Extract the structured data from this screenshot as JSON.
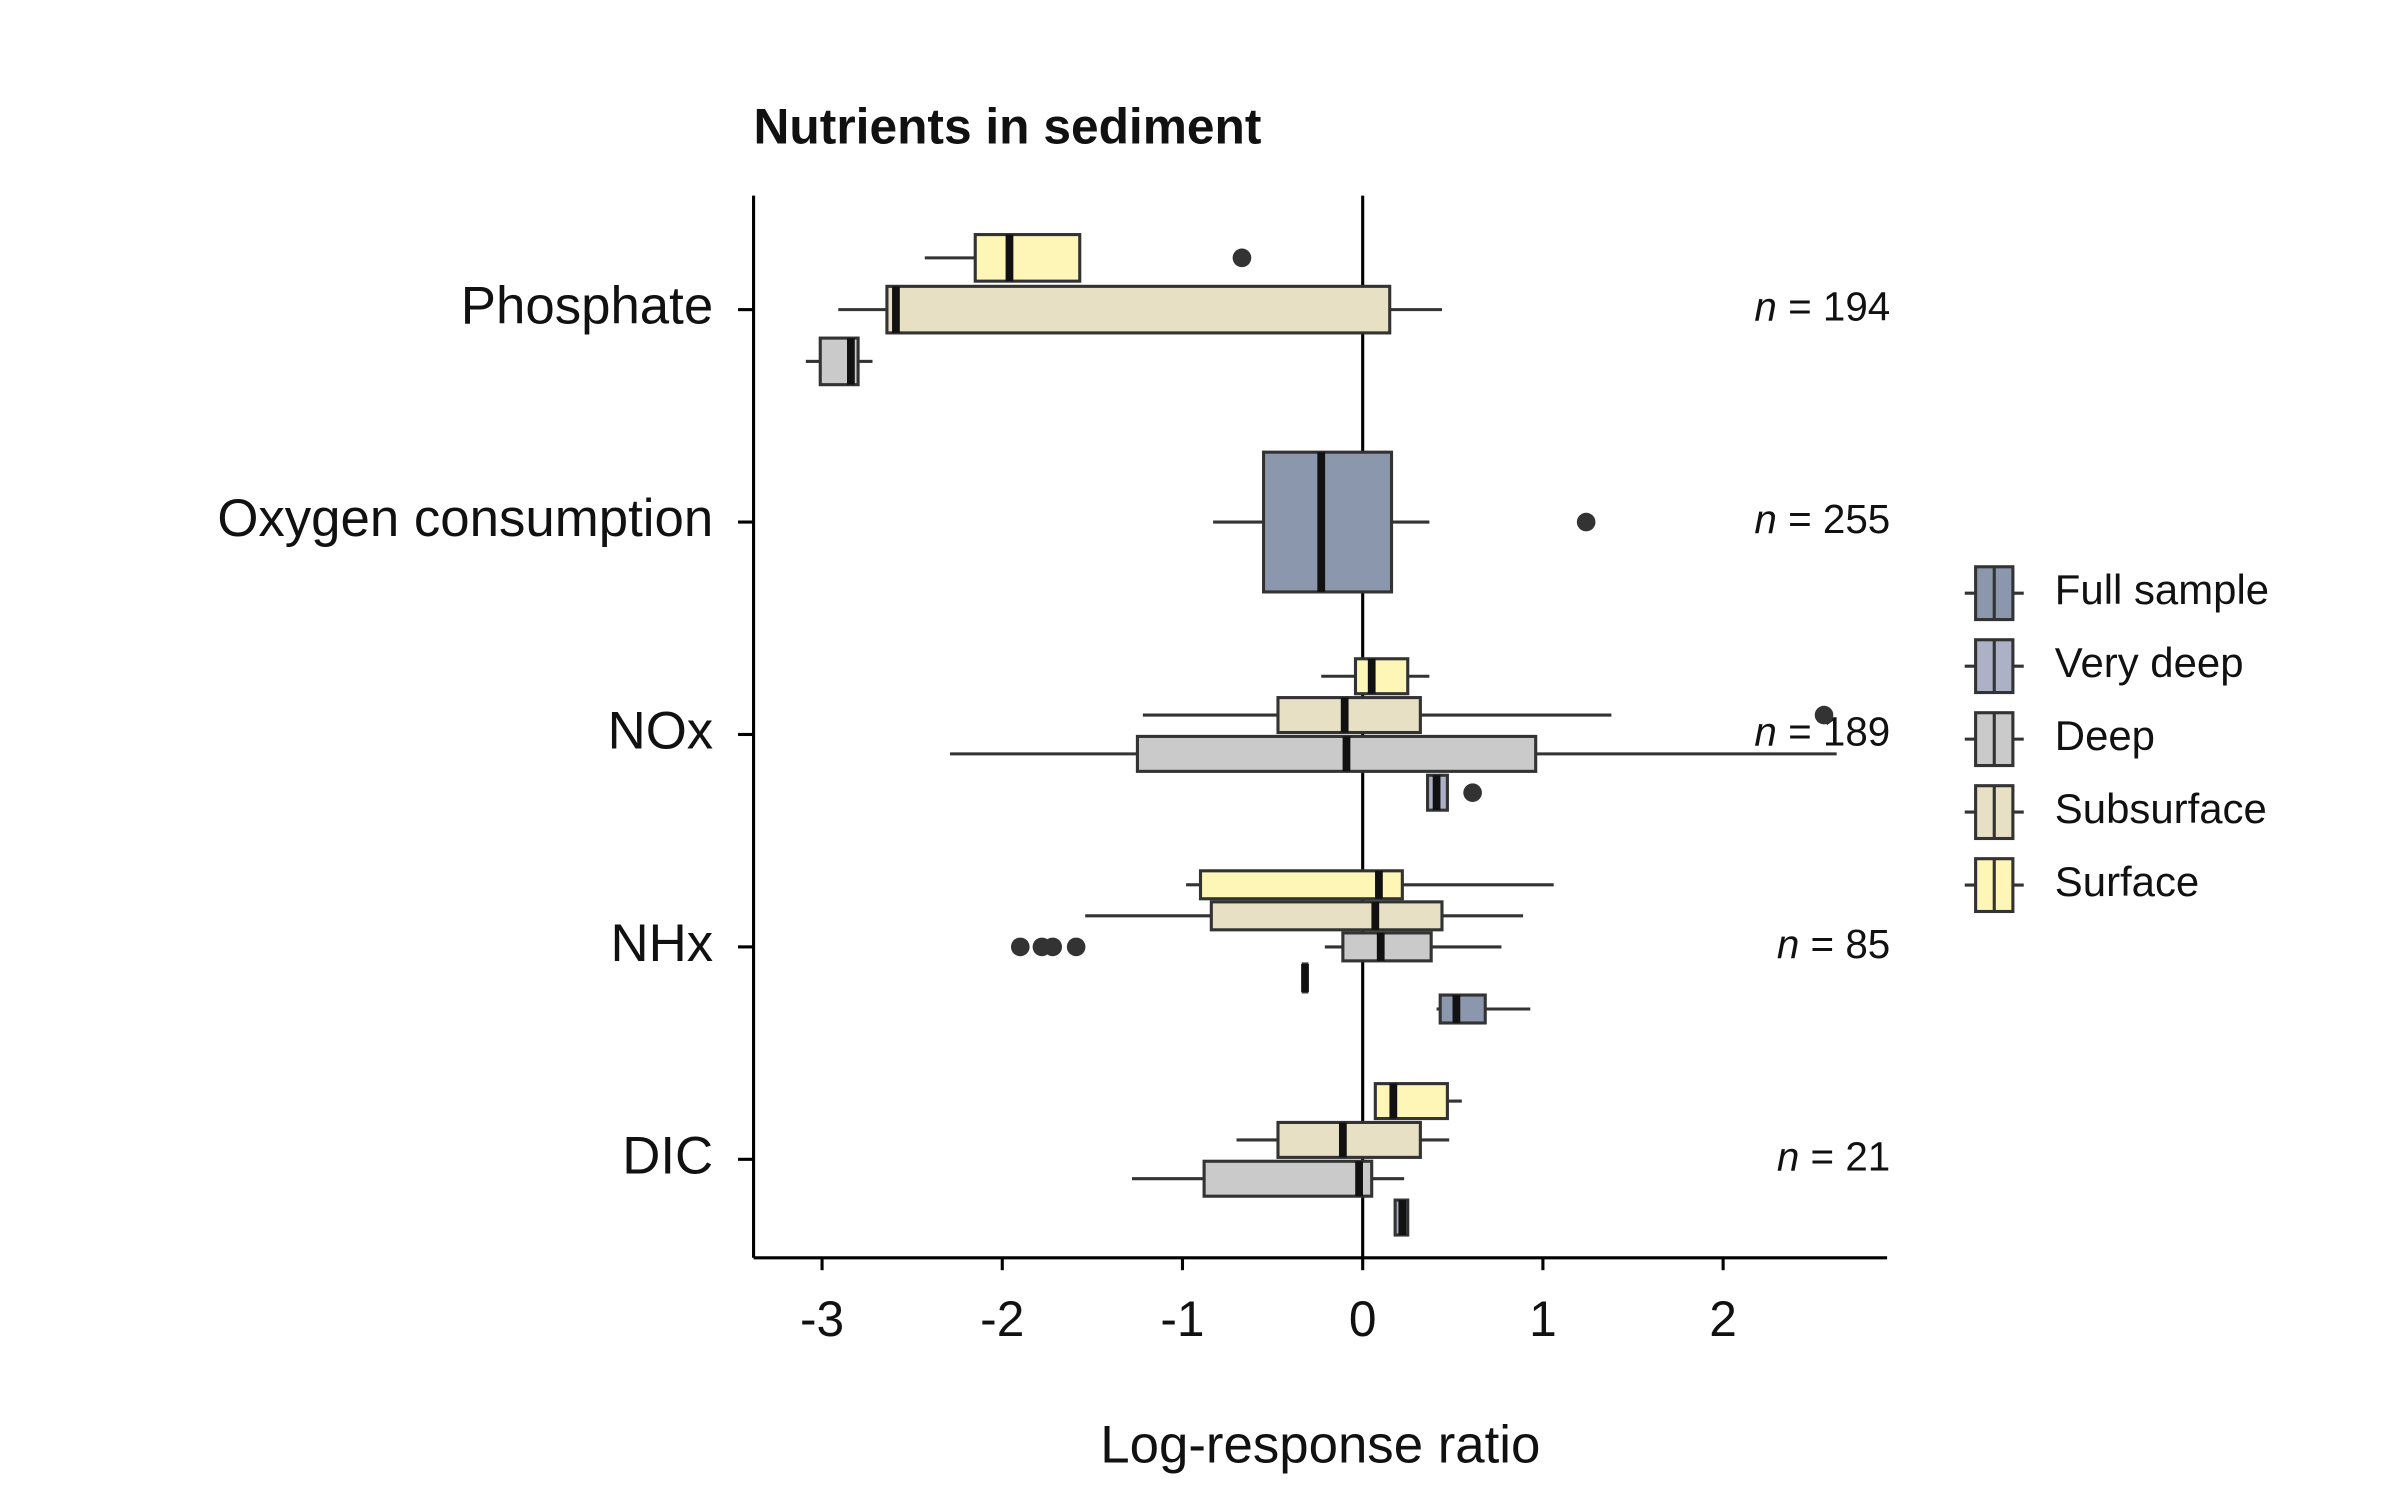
{
  "chart_data": {
    "type": "boxplot",
    "title": "Nutrients in sediment",
    "x_label": "Log-response ratio",
    "categories": [
      "Phosphate",
      "Oxygen consumption",
      "NOx",
      "NHx",
      "DIC"
    ],
    "annotations": [
      "n = 194",
      "n = 255",
      "n = 189",
      "n = 85",
      "n = 21"
    ],
    "xlim": [
      -3.38,
      2.91
    ],
    "xticks": [
      -3,
      -2,
      -1,
      0,
      1,
      2
    ],
    "vline": 0,
    "series": [
      {
        "name": "Full sample",
        "color": "#8b97ad",
        "whislo": [
          null,
          -0.83,
          null,
          0.41,
          null
        ],
        "q1": [
          null,
          -0.55,
          null,
          0.43,
          null
        ],
        "median": [
          null,
          -0.23,
          null,
          0.52,
          null
        ],
        "q3": [
          null,
          0.16,
          null,
          0.68,
          null
        ],
        "whishi": [
          null,
          0.37,
          null,
          0.93,
          null
        ],
        "outliers": [
          null,
          [
            1.24
          ],
          null,
          [],
          null
        ]
      },
      {
        "name": "Very deep",
        "color": "#adb1c6",
        "whislo": [
          null,
          null,
          0.36,
          -0.33,
          0.18
        ],
        "q1": [
          null,
          null,
          0.36,
          -0.33,
          0.18
        ],
        "median": [
          null,
          null,
          0.41,
          -0.32,
          0.22
        ],
        "q3": [
          null,
          null,
          0.47,
          -0.31,
          0.25
        ],
        "whishi": [
          null,
          null,
          0.47,
          -0.31,
          0.25
        ],
        "outliers": [
          null,
          null,
          [
            0.61
          ],
          [],
          []
        ]
      },
      {
        "name": "Deep",
        "color": "#cacaca",
        "whislo": [
          -3.09,
          null,
          -2.29,
          -0.21,
          -1.28
        ],
        "q1": [
          -3.01,
          null,
          -1.25,
          -0.11,
          -0.88
        ],
        "median": [
          -2.84,
          null,
          -0.09,
          0.1,
          -0.02
        ],
        "q3": [
          -2.8,
          null,
          0.96,
          0.38,
          0.05
        ],
        "whishi": [
          -2.72,
          null,
          2.63,
          0.77,
          0.23
        ],
        "outliers": [
          [],
          null,
          [],
          [
            -1.9,
            -1.78,
            -1.72,
            -1.59
          ],
          []
        ]
      },
      {
        "name": "Subsurface",
        "color": "#e7e0c5",
        "whislo": [
          -2.91,
          null,
          -1.22,
          -1.54,
          -0.7
        ],
        "q1": [
          -2.64,
          null,
          -0.47,
          -0.84,
          -0.47
        ],
        "median": [
          -2.59,
          null,
          -0.1,
          0.07,
          -0.11
        ],
        "q3": [
          0.15,
          null,
          0.32,
          0.44,
          0.32
        ],
        "whishi": [
          0.44,
          null,
          1.38,
          0.89,
          0.48
        ],
        "outliers": [
          [],
          null,
          [
            2.56
          ],
          [],
          []
        ]
      },
      {
        "name": "Surface",
        "color": "#fdf6b6",
        "whislo": [
          -2.43,
          null,
          -0.23,
          -0.98,
          0.07
        ],
        "q1": [
          -2.15,
          null,
          -0.04,
          -0.9,
          0.07
        ],
        "median": [
          -1.96,
          null,
          0.05,
          0.09,
          0.17
        ],
        "q3": [
          -1.57,
          null,
          0.25,
          0.22,
          0.47
        ],
        "whishi": [
          -1.57,
          null,
          0.37,
          1.06,
          0.55
        ],
        "outliers": [
          [
            -0.67
          ],
          null,
          [],
          [],
          []
        ]
      }
    ]
  }
}
